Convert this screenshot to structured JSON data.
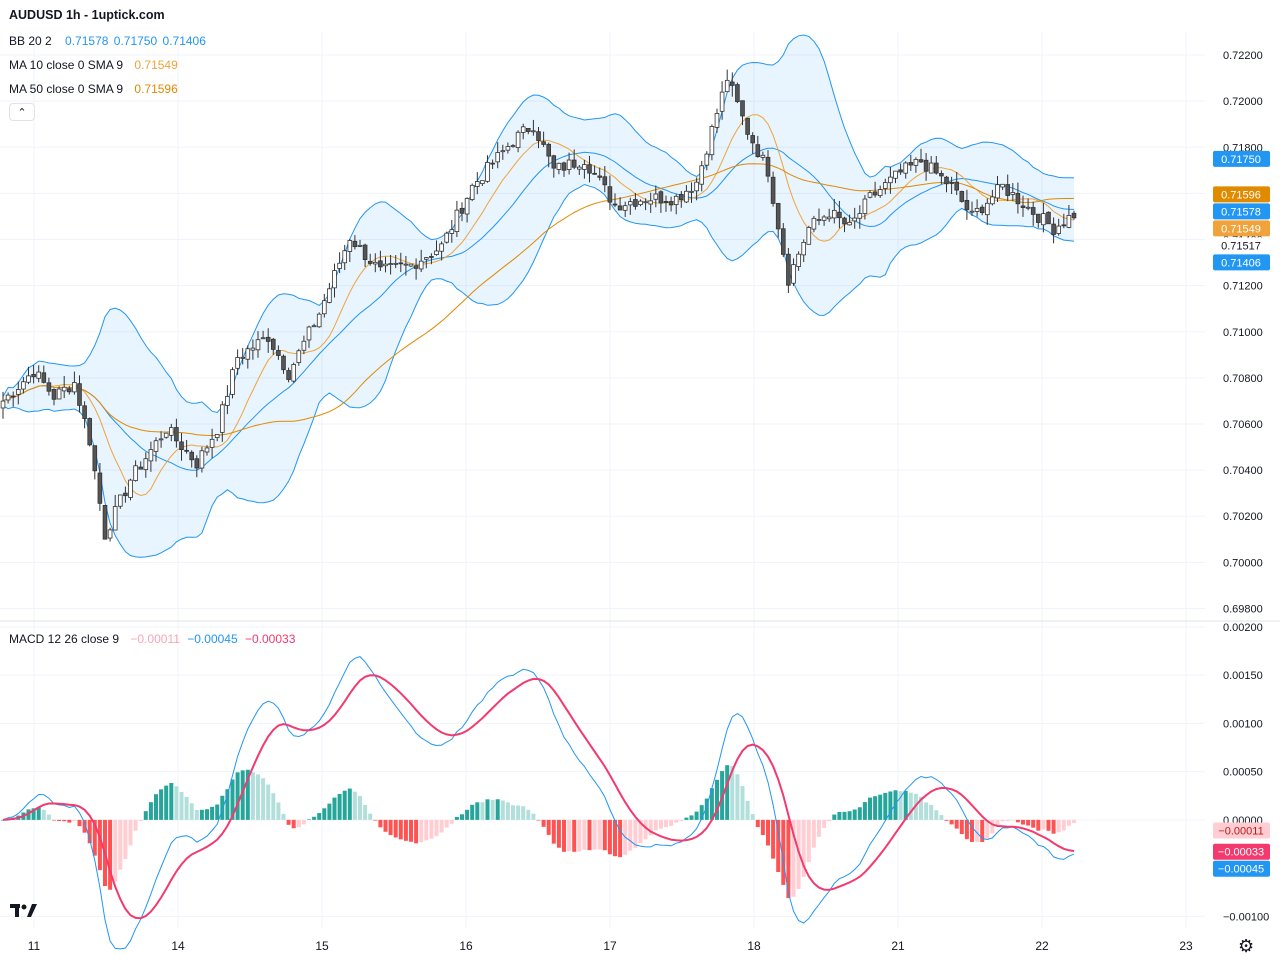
{
  "header": {
    "title": "AUDUSD 1h - 1uptick.com",
    "bb_label": "BB 20 2",
    "bb_values": [
      "0.71578",
      "0.71750",
      "0.71406"
    ],
    "ma10_label": "MA 10 close 0 SMA 9",
    "ma10_value": "0.71549",
    "ma50_label": "MA 50 close 0 SMA 9",
    "ma50_value": "0.71596",
    "macd_label": "MACD 12 26 close 9",
    "macd_values": [
      "−0.00011",
      "−0.00045",
      "−0.00033"
    ],
    "collapse_icon": "⌃"
  },
  "colors": {
    "up": "#ffffff",
    "down": "#555555",
    "wick": "#333333",
    "bb": "#2196f3",
    "bb_fill": "rgba(33,150,243,0.10)",
    "ma10": "#f0a33a",
    "ma50": "#e08a00",
    "macd": "#2196f3",
    "signal": "#f23a6e",
    "hist_up_strong": "#26a69a",
    "hist_up_weak": "#b2dfdb",
    "hist_dn_strong": "#ff5252",
    "hist_dn_weak": "#ffcdd2",
    "grid": "#f0f3fa"
  },
  "chart_data": [
    {
      "type": "candlestick",
      "title": "AUDUSD 1h",
      "ylim": [
        0.6975,
        0.723
      ],
      "y_ticks": [
        "0.72200",
        "0.72000",
        "0.71800",
        "0.71600",
        "0.71400",
        "0.71200",
        "0.71000",
        "0.70800",
        "0.70600",
        "0.70400",
        "0.70200",
        "0.70000",
        "0.69800"
      ],
      "x_ticks": [
        "11",
        "14",
        "15",
        "16",
        "17",
        "18",
        "21",
        "22",
        "23"
      ],
      "price_labels": [
        {
          "label": "0.71750",
          "value": 0.7175,
          "color": "#2196f3"
        },
        {
          "label": "0.71596",
          "value": 0.71596,
          "color": "#e08a00"
        },
        {
          "label": "0.71578",
          "value": 0.71578,
          "color": "#2196f3"
        },
        {
          "label": "0.71549",
          "value": 0.71549,
          "color": "#f0a33a"
        },
        {
          "label": "0.71517",
          "value": 0.71517,
          "color": "#ffffff"
        },
        {
          "label": "0.71406",
          "value": 0.71406,
          "color": "#2196f3"
        }
      ],
      "close_anchors": [
        [
          0,
          0.707
        ],
        [
          6,
          0.7083
        ],
        [
          10,
          0.7072
        ],
        [
          14,
          0.7078
        ],
        [
          17,
          0.7053
        ],
        [
          20,
          0.7012
        ],
        [
          25,
          0.7036
        ],
        [
          32,
          0.7058
        ],
        [
          38,
          0.7043
        ],
        [
          42,
          0.7058
        ],
        [
          46,
          0.7089
        ],
        [
          52,
          0.7098
        ],
        [
          56,
          0.7082
        ],
        [
          62,
          0.7108
        ],
        [
          68,
          0.7141
        ],
        [
          74,
          0.7126
        ],
        [
          80,
          0.7129
        ],
        [
          86,
          0.7137
        ],
        [
          92,
          0.7163
        ],
        [
          100,
          0.7183
        ],
        [
          104,
          0.719
        ],
        [
          108,
          0.717
        ],
        [
          114,
          0.7175
        ],
        [
          120,
          0.7155
        ],
        [
          126,
          0.7158
        ],
        [
          132,
          0.7158
        ],
        [
          136,
          0.7165
        ],
        [
          142,
          0.721
        ],
        [
          146,
          0.7187
        ],
        [
          150,
          0.717
        ],
        [
          154,
          0.7123
        ],
        [
          158,
          0.7145
        ],
        [
          162,
          0.7152
        ],
        [
          166,
          0.7145
        ],
        [
          170,
          0.7158
        ],
        [
          176,
          0.7169
        ],
        [
          180,
          0.7174
        ],
        [
          186,
          0.7163
        ],
        [
          190,
          0.715
        ],
        [
          196,
          0.7163
        ],
        [
          202,
          0.7152
        ],
        [
          206,
          0.7145
        ],
        [
          210,
          0.7151
        ]
      ],
      "series": [
        {
          "name": "BB 20 2"
        },
        {
          "name": "MA 10 close 0 SMA 9"
        },
        {
          "name": "MA 50 close 0 SMA 9"
        }
      ]
    },
    {
      "type": "bar+line",
      "title": "MACD 12 26 close 9",
      "ylim": [
        -0.00112,
        0.00205
      ],
      "y_ticks": [
        "0.00200",
        "0.00150",
        "0.00100",
        "0.00050",
        "0.00000",
        "−0.00100"
      ],
      "value_labels": [
        {
          "label": "−0.00011",
          "value": -0.00011,
          "bg": "#ffcdd2",
          "fg": "#b71c1c"
        },
        {
          "label": "−0.00033",
          "value": -0.00033,
          "bg": "#f23a6e",
          "fg": "#ffffff"
        },
        {
          "label": "−0.00045",
          "value": -0.00045,
          "bg": "#2196f3",
          "fg": "#ffffff"
        }
      ],
      "series": [
        {
          "name": "MACD"
        },
        {
          "name": "Signal"
        },
        {
          "name": "Histogram"
        }
      ]
    }
  ]
}
